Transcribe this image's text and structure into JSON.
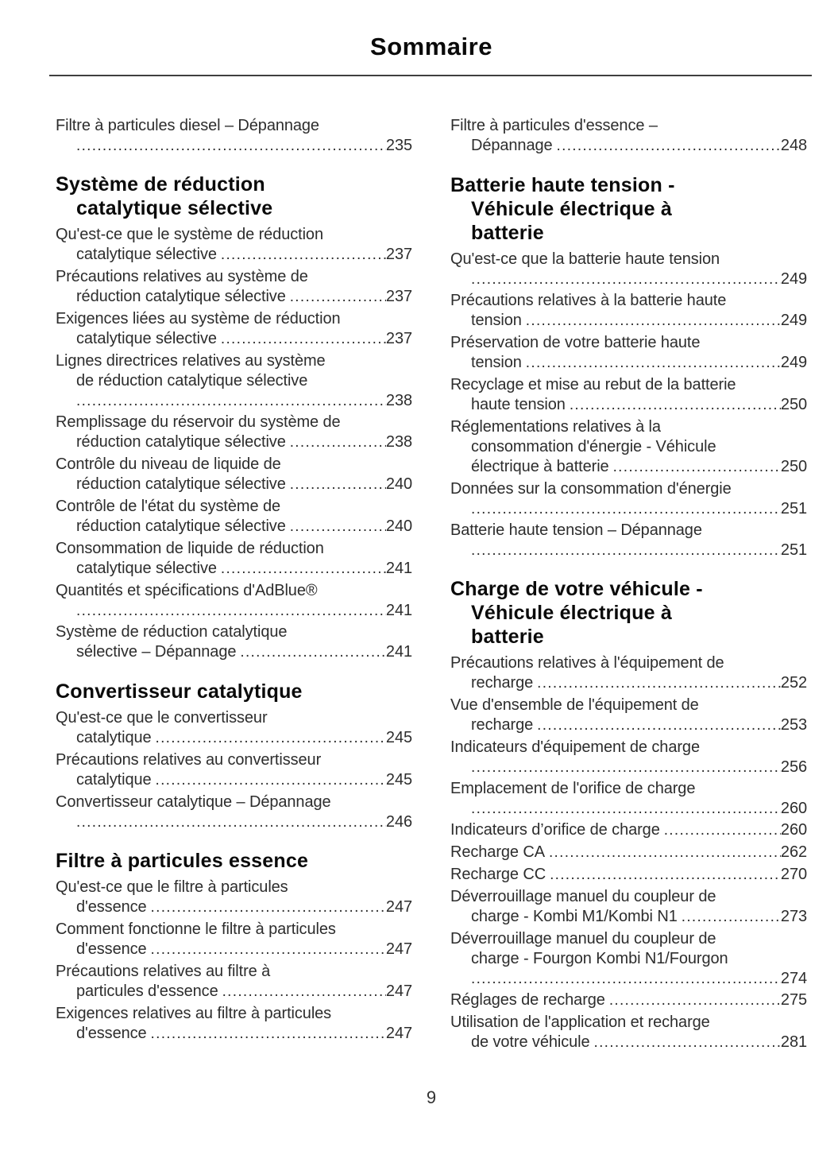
{
  "page": {
    "title": "Sommaire",
    "page_number": "9"
  },
  "columns": [
    {
      "side": "left",
      "sections": [
        {
          "heading_lines": [],
          "entries": [
            {
              "lines": [
                "Filtre à particules diesel – Dépannage"
              ],
              "page": "235",
              "dots_own_line": true
            }
          ]
        },
        {
          "heading_lines": [
            "Système de réduction",
            "catalytique sélective"
          ],
          "entries": [
            {
              "lines": [
                "Qu'est-ce que le système de réduction",
                "catalytique sélective"
              ],
              "page": "237"
            },
            {
              "lines": [
                "Précautions relatives au système de",
                "réduction catalytique sélective"
              ],
              "page": "237"
            },
            {
              "lines": [
                "Exigences liées au système de réduction",
                "catalytique sélective"
              ],
              "page": "237"
            },
            {
              "lines": [
                "Lignes directrices relatives au système",
                "de réduction catalytique sélective"
              ],
              "page": "238",
              "dots_own_line": true
            },
            {
              "lines": [
                "Remplissage du réservoir du système de",
                "réduction catalytique sélective"
              ],
              "page": "238"
            },
            {
              "lines": [
                "Contrôle du niveau de liquide de",
                "réduction catalytique sélective"
              ],
              "page": "240"
            },
            {
              "lines": [
                "Contrôle de l'état du système de",
                "réduction catalytique sélective"
              ],
              "page": "240"
            },
            {
              "lines": [
                "Consommation de liquide de réduction",
                "catalytique sélective"
              ],
              "page": "241"
            },
            {
              "lines": [
                "Quantités et spécifications d'AdBlue®"
              ],
              "page": "241",
              "dots_own_line": true
            },
            {
              "lines": [
                "Système de réduction catalytique",
                "sélective – Dépannage"
              ],
              "page": "241"
            }
          ]
        },
        {
          "heading_lines": [
            "Convertisseur catalytique"
          ],
          "entries": [
            {
              "lines": [
                "Qu'est-ce que le convertisseur",
                "catalytique"
              ],
              "page": "245"
            },
            {
              "lines": [
                "Précautions relatives au convertisseur",
                "catalytique"
              ],
              "page": "245"
            },
            {
              "lines": [
                "Convertisseur catalytique – Dépannage"
              ],
              "page": "246",
              "dots_own_line": true
            }
          ]
        },
        {
          "heading_lines": [
            "Filtre à particules essence"
          ],
          "entries": [
            {
              "lines": [
                "Qu'est-ce que le filtre à particules",
                "d'essence"
              ],
              "page": "247"
            },
            {
              "lines": [
                "Comment fonctionne le filtre à particules",
                "d'essence"
              ],
              "page": "247"
            },
            {
              "lines": [
                "Précautions relatives au filtre à",
                "particules d'essence"
              ],
              "page": "247"
            },
            {
              "lines": [
                "Exigences relatives au filtre à particules",
                "d'essence"
              ],
              "page": "247"
            }
          ]
        }
      ]
    },
    {
      "side": "right",
      "sections": [
        {
          "heading_lines": [],
          "entries": [
            {
              "lines": [
                "Filtre à particules d'essence –",
                "Dépannage"
              ],
              "page": "248"
            }
          ]
        },
        {
          "heading_lines": [
            "Batterie haute tension -",
            "Véhicule électrique à",
            "batterie"
          ],
          "entries": [
            {
              "lines": [
                "Qu'est-ce que la batterie haute tension"
              ],
              "page": "249",
              "dots_own_line": true
            },
            {
              "lines": [
                "Précautions relatives à la batterie haute",
                "tension"
              ],
              "page": "249"
            },
            {
              "lines": [
                "Préservation de votre batterie haute",
                "tension"
              ],
              "page": "249"
            },
            {
              "lines": [
                "Recyclage et mise au rebut de la batterie",
                "haute tension"
              ],
              "page": "250"
            },
            {
              "lines": [
                "Réglementations relatives à la",
                "consommation d'énergie - Véhicule",
                "électrique à batterie"
              ],
              "page": "250"
            },
            {
              "lines": [
                "Données sur la consommation d'énergie"
              ],
              "page": "251",
              "dots_own_line": true
            },
            {
              "lines": [
                "Batterie haute tension – Dépannage"
              ],
              "page": "251",
              "dots_own_line": true
            }
          ]
        },
        {
          "heading_lines": [
            "Charge de votre véhicule -",
            "Véhicule électrique à",
            "batterie"
          ],
          "entries": [
            {
              "lines": [
                "Précautions relatives à l'équipement de",
                "recharge"
              ],
              "page": "252"
            },
            {
              "lines": [
                "Vue d'ensemble de l'équipement de",
                "recharge"
              ],
              "page": "253"
            },
            {
              "lines": [
                "Indicateurs d'équipement de charge"
              ],
              "page": "256",
              "dots_own_line": true
            },
            {
              "lines": [
                "Emplacement de l'orifice de charge"
              ],
              "page": "260",
              "dots_own_line": true
            },
            {
              "lines": [
                "Indicateurs d’orifice de charge"
              ],
              "page": "260"
            },
            {
              "lines": [
                "Recharge CA"
              ],
              "page": "262"
            },
            {
              "lines": [
                "Recharge CC"
              ],
              "page": "270"
            },
            {
              "lines": [
                "Déverrouillage manuel du coupleur de",
                "charge - Kombi M1/Kombi N1"
              ],
              "page": "273"
            },
            {
              "lines": [
                "Déverrouillage manuel du coupleur de",
                "charge - Fourgon Kombi N1/Fourgon"
              ],
              "page": "274",
              "dots_own_line": true
            },
            {
              "lines": [
                "Réglages de recharge"
              ],
              "page": "275"
            },
            {
              "lines": [
                "Utilisation de l'application et recharge",
                "de votre véhicule"
              ],
              "page": "281"
            }
          ]
        }
      ]
    }
  ]
}
